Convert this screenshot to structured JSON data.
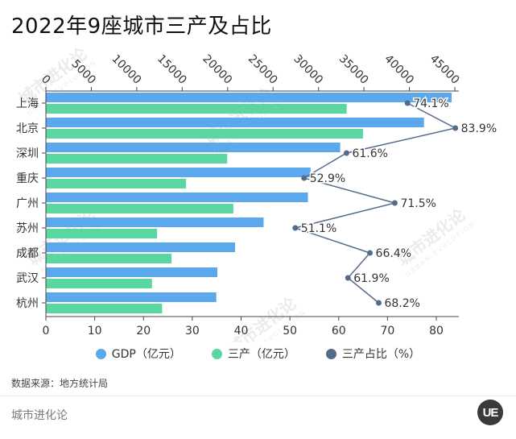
{
  "title": "2022年9座城市三产及占比",
  "source": "数据来源：地方统计局",
  "brand": "城市进化论",
  "logo_text": "UE",
  "watermark": [
    "城市进化论",
    "URBAN EVOLUTION"
  ],
  "colors": {
    "gdp": "#5ba8ec",
    "tertiary": "#5ad6a0",
    "share": "#546c8c",
    "axis": "#444444"
  },
  "chart_data": {
    "type": "bar",
    "orientation": "horizontal",
    "categories": [
      "上海",
      "北京",
      "深圳",
      "重庆",
      "广州",
      "苏州",
      "成都",
      "武汉",
      "杭州"
    ],
    "series": [
      {
        "name": "GDP（亿元）",
        "axis": "top",
        "values": [
          44653,
          41611,
          32388,
          29129,
          28839,
          23958,
          20818,
          18866,
          18753
        ]
      },
      {
        "name": "三产（亿元）",
        "axis": "top",
        "values": [
          33098,
          34894,
          19956,
          15423,
          20625,
          12232,
          13826,
          11677,
          12788
        ]
      },
      {
        "name": "三产占比（%）",
        "type": "line",
        "axis": "bottom",
        "values": [
          74.1,
          83.9,
          61.6,
          52.9,
          71.5,
          51.1,
          66.4,
          61.9,
          68.2
        ],
        "labels": [
          "74.1%",
          "83.9%",
          "61.6%",
          "52.9%",
          "71.5%",
          "51.1%",
          "66.4%",
          "61.9%",
          "68.2%"
        ]
      }
    ],
    "top_axis": {
      "min": 0,
      "max": 45000,
      "ticks": [
        "0",
        "5000",
        "10000",
        "15000",
        "20000",
        "25000",
        "30000",
        "35000",
        "40000",
        "45000"
      ]
    },
    "bottom_axis": {
      "min": 0,
      "max": 80,
      "ticks": [
        "0",
        "10",
        "20",
        "30",
        "40",
        "50",
        "60",
        "70",
        "80"
      ]
    },
    "grid": false,
    "legend_position": "bottom"
  }
}
